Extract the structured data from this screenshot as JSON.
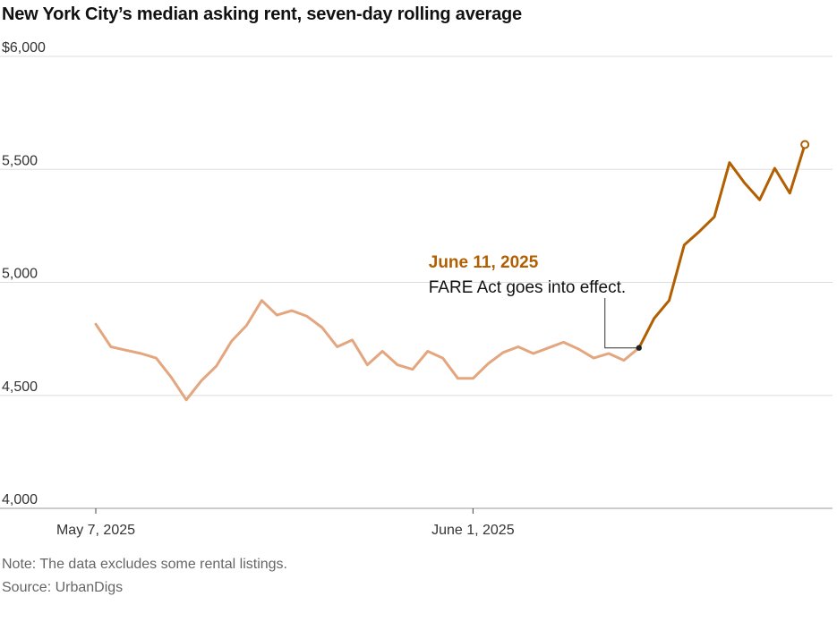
{
  "chart_data": {
    "type": "line",
    "title": "New York City’s median asking rent, seven-day rolling average",
    "xlabel": "",
    "ylabel": "",
    "x_ticks": [
      {
        "label": "May 7, 2025",
        "date": "2025-05-07"
      },
      {
        "label": "June 1, 2025",
        "date": "2025-06-01"
      }
    ],
    "y_ticks": [
      {
        "label": "$6,000",
        "value": 6000
      },
      {
        "label": "5,500",
        "value": 5500
      },
      {
        "label": "5,000",
        "value": 5000
      },
      {
        "label": "4,500",
        "value": 4500
      },
      {
        "label": "4,000",
        "value": 4000
      }
    ],
    "ylim": [
      4000,
      6000
    ],
    "xlim": [
      "2025-05-07",
      "2025-06-24"
    ],
    "grid": "horizontal",
    "colors": {
      "before": "#e3a67f",
      "after": "#b15f00",
      "grid": "#dddddd",
      "axis": "#999999",
      "annotation_line": "#333333"
    },
    "series": [
      {
        "points": [
          {
            "date": "2025-05-07",
            "value": 4815
          },
          {
            "date": "2025-05-08",
            "value": 4715
          },
          {
            "date": "2025-05-09",
            "value": 4700
          },
          {
            "date": "2025-05-10",
            "value": 4685
          },
          {
            "date": "2025-05-11",
            "value": 4665
          },
          {
            "date": "2025-05-12",
            "value": 4580
          },
          {
            "date": "2025-05-13",
            "value": 4480
          },
          {
            "date": "2025-05-14",
            "value": 4565
          },
          {
            "date": "2025-05-15",
            "value": 4630
          },
          {
            "date": "2025-05-16",
            "value": 4740
          },
          {
            "date": "2025-05-17",
            "value": 4810
          },
          {
            "date": "2025-05-18",
            "value": 4920
          },
          {
            "date": "2025-05-19",
            "value": 4855
          },
          {
            "date": "2025-05-20",
            "value": 4875
          },
          {
            "date": "2025-05-21",
            "value": 4850
          },
          {
            "date": "2025-05-22",
            "value": 4800
          },
          {
            "date": "2025-05-23",
            "value": 4715
          },
          {
            "date": "2025-05-24",
            "value": 4745
          },
          {
            "date": "2025-05-25",
            "value": 4635
          },
          {
            "date": "2025-05-26",
            "value": 4695
          },
          {
            "date": "2025-05-27",
            "value": 4635
          },
          {
            "date": "2025-05-28",
            "value": 4615
          },
          {
            "date": "2025-05-29",
            "value": 4695
          },
          {
            "date": "2025-05-30",
            "value": 4665
          },
          {
            "date": "2025-05-31",
            "value": 4575
          },
          {
            "date": "2025-06-01",
            "value": 4575
          },
          {
            "date": "2025-06-02",
            "value": 4640
          },
          {
            "date": "2025-06-03",
            "value": 4690
          },
          {
            "date": "2025-06-04",
            "value": 4715
          },
          {
            "date": "2025-06-05",
            "value": 4685
          },
          {
            "date": "2025-06-06",
            "value": 4710
          },
          {
            "date": "2025-06-07",
            "value": 4735
          },
          {
            "date": "2025-06-08",
            "value": 4705
          },
          {
            "date": "2025-06-09",
            "value": 4665
          },
          {
            "date": "2025-06-10",
            "value": 4685
          },
          {
            "date": "2025-06-11",
            "value": 4655
          },
          {
            "date": "2025-06-12",
            "value": 4710
          }
        ]
      },
      {
        "points": [
          {
            "date": "2025-06-12",
            "value": 4710
          },
          {
            "date": "2025-06-13",
            "value": 4840
          },
          {
            "date": "2025-06-14",
            "value": 4920
          },
          {
            "date": "2025-06-15",
            "value": 5165
          },
          {
            "date": "2025-06-16",
            "value": 5225
          },
          {
            "date": "2025-06-17",
            "value": 5290
          },
          {
            "date": "2025-06-18",
            "value": 5530
          },
          {
            "date": "2025-06-19",
            "value": 5440
          },
          {
            "date": "2025-06-20",
            "value": 5365
          },
          {
            "date": "2025-06-21",
            "value": 5505
          },
          {
            "date": "2025-06-22",
            "value": 5395
          },
          {
            "date": "2025-06-23",
            "value": 5610
          }
        ]
      }
    ],
    "annotation": {
      "date_label": "June 11, 2025",
      "text": "FARE Act goes into effect.",
      "point_date": "2025-06-12",
      "point_value": 4710
    },
    "end_marker": {
      "date": "2025-06-23",
      "value": 5610
    }
  },
  "footer": {
    "note": "Note: The data excludes some rental listings.",
    "source": "Source: UrbanDigs"
  }
}
